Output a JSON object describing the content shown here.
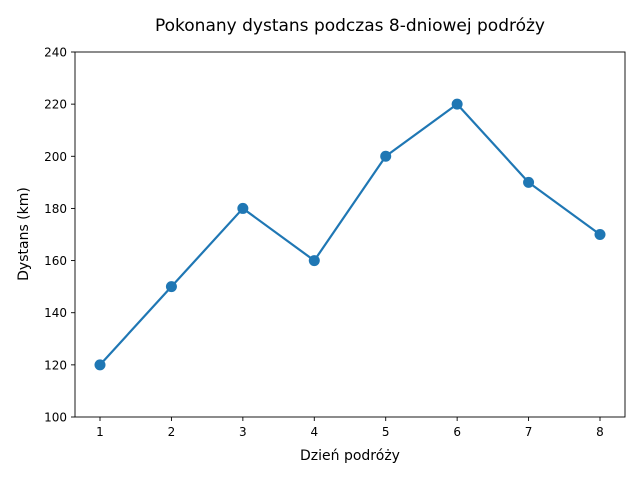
{
  "chart_data": {
    "type": "line",
    "title": "Pokonany dystans podczas 8-dniowej podróży",
    "xlabel": "Dzień podróży",
    "ylabel": "Dystans (km)",
    "x": [
      1,
      2,
      3,
      4,
      5,
      6,
      7,
      8
    ],
    "series": [
      {
        "values": [
          120,
          150,
          180,
          160,
          200,
          220,
          190,
          170
        ]
      }
    ],
    "xticks": [
      1,
      2,
      3,
      4,
      5,
      6,
      7,
      8
    ],
    "yticks": [
      100,
      120,
      140,
      160,
      180,
      200,
      220,
      240
    ],
    "xlim": [
      0.65,
      8.35
    ],
    "ylim": [
      100,
      240
    ],
    "grid": false,
    "line_color": "#1f77b4",
    "marker": "circle"
  }
}
